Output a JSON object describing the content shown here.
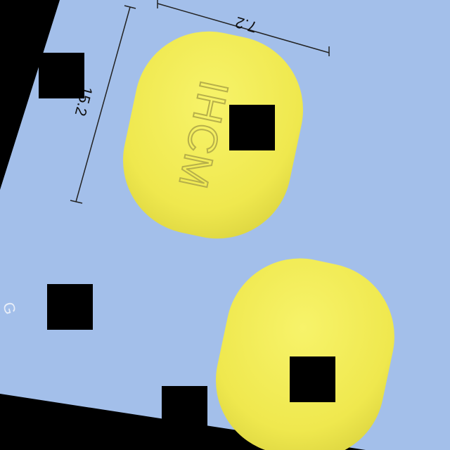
{
  "photo": {
    "background_color": "#a3bfea",
    "tablet_color": "#f3ee5a",
    "mask_color": "#000000",
    "dimension_width": "7.2",
    "dimension_length": "15.2",
    "imprint": "IHCM",
    "edge_mark": "G"
  }
}
